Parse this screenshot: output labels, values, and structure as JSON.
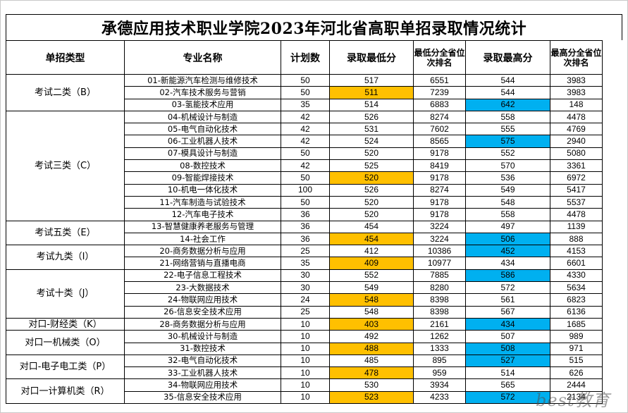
{
  "title": "承德应用技术职业学院2023年河北省高职单招录取情况统计",
  "headers": {
    "type": "单招类型",
    "major": "专业名称",
    "plan": "计划数",
    "min_score": "录取最低分",
    "min_rank": "最低分全省位次排名",
    "max_score": "录取最高分",
    "max_rank": "最高分全省位次排名"
  },
  "groups": [
    {
      "type": "考试二类（B）",
      "rows": [
        {
          "major": "01-新能源汽车检测与维修技术",
          "plan": "50",
          "min": "517",
          "min_rank": "6551",
          "max": "544",
          "max_rank": "3983"
        },
        {
          "major": "02-汽车技术服务与营销",
          "plan": "50",
          "min": "511",
          "min_rank": "7239",
          "max": "544",
          "max_rank": "3983",
          "hl_min": true
        },
        {
          "major": "03-氢能技术应用",
          "plan": "35",
          "min": "514",
          "min_rank": "6883",
          "max": "642",
          "max_rank": "148",
          "hl_max": true
        }
      ]
    },
    {
      "type": "考试三类（C）",
      "rows": [
        {
          "major": "04-机械设计与制造",
          "plan": "42",
          "min": "526",
          "min_rank": "8274",
          "max": "558",
          "max_rank": "4478"
        },
        {
          "major": "05-电气自动化技术",
          "plan": "42",
          "min": "531",
          "min_rank": "7602",
          "max": "555",
          "max_rank": "4769"
        },
        {
          "major": "06-工业机器人技术",
          "plan": "42",
          "min": "524",
          "min_rank": "8565",
          "max": "575",
          "max_rank": "2940",
          "hl_max": true
        },
        {
          "major": "07-模具设计与制造",
          "plan": "50",
          "min": "520",
          "min_rank": "9178",
          "max": "552",
          "max_rank": "5080"
        },
        {
          "major": "08-数控技术",
          "plan": "42",
          "min": "525",
          "min_rank": "8419",
          "max": "570",
          "max_rank": "3361"
        },
        {
          "major": "09-智能焊接技术",
          "plan": "50",
          "min": "520",
          "min_rank": "9178",
          "max": "536",
          "max_rank": "6972",
          "hl_min": true
        },
        {
          "major": "10-机电一体化技术",
          "plan": "100",
          "min": "526",
          "min_rank": "8274",
          "max": "549",
          "max_rank": "5417"
        },
        {
          "major": "11-汽车制造与试验技术",
          "plan": "50",
          "min": "520",
          "min_rank": "9178",
          "max": "548",
          "max_rank": "5537"
        },
        {
          "major": "12-汽车电子技术",
          "plan": "36",
          "min": "520",
          "min_rank": "9178",
          "max": "558",
          "max_rank": "4478"
        }
      ]
    },
    {
      "type": "考试五类（E）",
      "rows": [
        {
          "major": "13-智慧健康养老服务与管理",
          "plan": "36",
          "min": "454",
          "min_rank": "3224",
          "max": "497",
          "max_rank": "1139"
        },
        {
          "major": "14-社会工作",
          "plan": "36",
          "min": "454",
          "min_rank": "3224",
          "max": "506",
          "max_rank": "888",
          "hl_min": true,
          "hl_max": true
        }
      ]
    },
    {
      "type": "考试九类（I）",
      "rows": [
        {
          "major": "20-商务数据分析与应用",
          "plan": "25",
          "min": "412",
          "min_rank": "10386",
          "max": "452",
          "max_rank": "4153",
          "hl_max": true
        },
        {
          "major": "21-网络营销与直播电商",
          "plan": "35",
          "min": "409",
          "min_rank": "10977",
          "max": "434",
          "max_rank": "6601",
          "hl_min": true
        }
      ]
    },
    {
      "type": "考试十类（J）",
      "rows": [
        {
          "major": "22-电子信息工程技术",
          "plan": "30",
          "min": "552",
          "min_rank": "7885",
          "max": "586",
          "max_rank": "4330",
          "hl_max": true
        },
        {
          "major": "23-大数据技术",
          "plan": "30",
          "min": "549",
          "min_rank": "8280",
          "max": "572",
          "max_rank": "5634"
        },
        {
          "major": "24-物联网应用技术",
          "plan": "24",
          "min": "548",
          "min_rank": "8398",
          "max": "561",
          "max_rank": "6823",
          "hl_min": true
        },
        {
          "major": "26-信息安全技术应用",
          "plan": "25",
          "min": "548",
          "min_rank": "8398",
          "max": "567",
          "max_rank": "6136"
        }
      ]
    },
    {
      "type": "对口-财经类（K）",
      "rows": [
        {
          "major": "28-商务数据分析与应用",
          "plan": "10",
          "min": "403",
          "min_rank": "2161",
          "max": "434",
          "max_rank": "1685",
          "hl_min": true,
          "hl_max": true
        }
      ]
    },
    {
      "type": "对口一机械类（O）",
      "rows": [
        {
          "major": "30-机械设计与制造",
          "plan": "10",
          "min": "492",
          "min_rank": "1262",
          "max": "507",
          "max_rank": "989"
        },
        {
          "major": "31-数控技术",
          "plan": "10",
          "min": "488",
          "min_rank": "1333",
          "max": "508",
          "max_rank": "971",
          "hl_min": true,
          "hl_max": true
        }
      ]
    },
    {
      "type": "对口-电子电工类（P）",
      "rows": [
        {
          "major": "32-电气自动化技术",
          "plan": "10",
          "min": "485",
          "min_rank": "895",
          "max": "527",
          "max_rank": "515",
          "hl_max": true
        },
        {
          "major": "33-工业机器人技术",
          "plan": "10",
          "min": "478",
          "min_rank": "959",
          "max": "514",
          "max_rank": "626",
          "hl_min": true
        }
      ]
    },
    {
      "type": "对口一计算机类（R）",
      "rows": [
        {
          "major": "34-物联网应用技术",
          "plan": "10",
          "min": "530",
          "min_rank": "3934",
          "max": "565",
          "max_rank": "2444"
        },
        {
          "major": "35-信息安全技术应用",
          "plan": "10",
          "min": "523",
          "min_rank": "4233",
          "max": "572",
          "max_rank": "2134",
          "hl_min": true,
          "hl_max": true
        }
      ]
    }
  ],
  "watermark": "best教育",
  "colors": {
    "min_highlight": "#ffc000",
    "max_highlight": "#00b0f0"
  }
}
